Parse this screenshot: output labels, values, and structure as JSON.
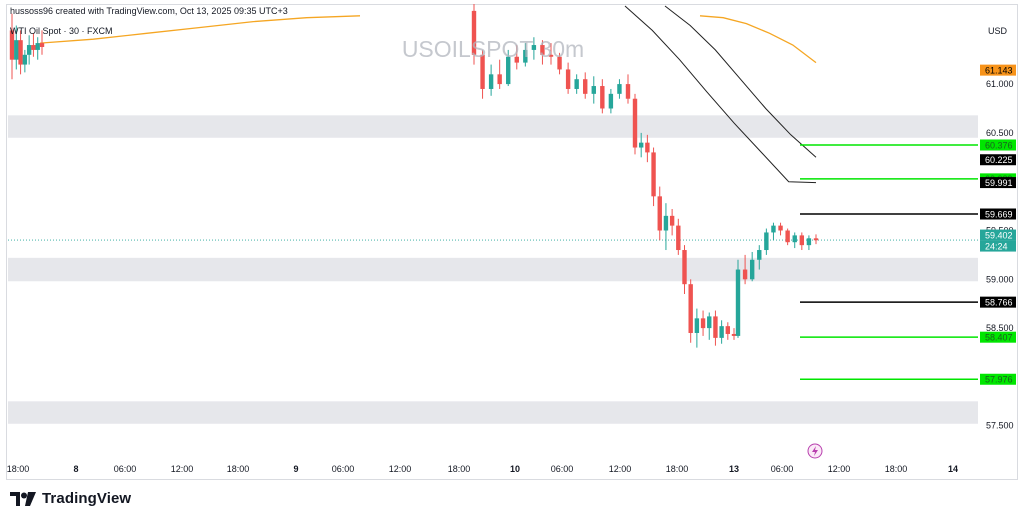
{
  "attribution": "hussoss96 created with TradingView.com, Oct 13, 2025 09:35 UTC+3",
  "instrument_label": "WTI Oil Spot · 30 · FXCM",
  "watermark": "USOILSPOT 30m",
  "currency": "USD",
  "brand": "TradingView",
  "icons": {
    "brand_logo": "tradingview-logo-icon",
    "replay": "lightning-icon"
  },
  "colors": {
    "up": "#26a69a",
    "down": "#ef5350",
    "zone": "#e6e7eb",
    "level_black": "#000000",
    "level_green": "#00e600",
    "ma_orange": "#f5a623",
    "channel": "#222222",
    "price_line": "#26a69a"
  },
  "chart_data": {
    "type": "candlestick",
    "title": "USOILSPOT 30m",
    "ylim": [
      57.2,
      61.8
    ],
    "yticks": [
      61.0,
      60.5,
      59.5,
      59.0,
      58.5,
      57.5
    ],
    "ytick_labels": [
      "61.000",
      "60.500",
      "59.500",
      "59.000",
      "58.500",
      "57.500"
    ],
    "xtick_labels": [
      "18:00",
      "8",
      "06:00",
      "12:00",
      "18:00",
      "9",
      "06:00",
      "12:00",
      "18:00",
      "10",
      "06:00",
      "12:00",
      "18:00",
      "13",
      "06:00",
      "12:00",
      "18:00",
      "14"
    ],
    "candles": [
      {
        "o": 61.55,
        "h": 61.72,
        "l": 61.05,
        "c": 61.25
      },
      {
        "o": 61.25,
        "h": 61.6,
        "l": 61.15,
        "c": 61.45
      },
      {
        "o": 61.45,
        "h": 61.55,
        "l": 61.1,
        "c": 61.2
      },
      {
        "o": 61.2,
        "h": 61.35,
        "l": 61.12,
        "c": 61.3
      },
      {
        "o": 61.3,
        "h": 61.5,
        "l": 61.2,
        "c": 61.4
      },
      {
        "o": 61.4,
        "h": 61.52,
        "l": 61.28,
        "c": 61.35
      },
      {
        "o": 61.35,
        "h": 61.48,
        "l": 61.25,
        "c": 61.42
      },
      {
        "o": 61.42,
        "h": 61.55,
        "l": 61.3,
        "c": 61.38
      },
      {
        "o": 61.75,
        "h": 61.82,
        "l": 61.2,
        "c": 61.3
      },
      {
        "o": 61.3,
        "h": 61.35,
        "l": 60.85,
        "c": 60.95
      },
      {
        "o": 60.95,
        "h": 61.2,
        "l": 60.88,
        "c": 61.1
      },
      {
        "o": 61.1,
        "h": 61.25,
        "l": 60.95,
        "c": 61.0
      },
      {
        "o": 61.0,
        "h": 61.35,
        "l": 60.98,
        "c": 61.28
      },
      {
        "o": 61.28,
        "h": 61.4,
        "l": 61.15,
        "c": 61.22
      },
      {
        "o": 61.22,
        "h": 61.42,
        "l": 61.18,
        "c": 61.35
      },
      {
        "o": 61.35,
        "h": 61.48,
        "l": 61.25,
        "c": 61.4
      },
      {
        "o": 61.4,
        "h": 61.45,
        "l": 61.2,
        "c": 61.3
      },
      {
        "o": 61.3,
        "h": 61.42,
        "l": 61.2,
        "c": 61.28
      },
      {
        "o": 61.28,
        "h": 61.32,
        "l": 61.1,
        "c": 61.15
      },
      {
        "o": 61.15,
        "h": 61.22,
        "l": 60.9,
        "c": 60.95
      },
      {
        "o": 60.95,
        "h": 61.1,
        "l": 60.9,
        "c": 61.05
      },
      {
        "o": 61.05,
        "h": 61.12,
        "l": 60.85,
        "c": 60.9
      },
      {
        "o": 60.9,
        "h": 61.08,
        "l": 60.8,
        "c": 60.98
      },
      {
        "o": 60.98,
        "h": 61.05,
        "l": 60.7,
        "c": 60.75
      },
      {
        "o": 60.75,
        "h": 60.95,
        "l": 60.7,
        "c": 60.9
      },
      {
        "o": 60.9,
        "h": 61.05,
        "l": 60.85,
        "c": 61.0
      },
      {
        "o": 61.0,
        "h": 61.1,
        "l": 60.8,
        "c": 60.85
      },
      {
        "o": 60.85,
        "h": 60.9,
        "l": 60.28,
        "c": 60.35
      },
      {
        "o": 60.35,
        "h": 60.5,
        "l": 60.25,
        "c": 60.4
      },
      {
        "o": 60.4,
        "h": 60.48,
        "l": 60.2,
        "c": 60.3
      },
      {
        "o": 60.3,
        "h": 60.35,
        "l": 59.75,
        "c": 59.85
      },
      {
        "o": 59.85,
        "h": 59.95,
        "l": 59.4,
        "c": 59.5
      },
      {
        "o": 59.5,
        "h": 59.78,
        "l": 59.3,
        "c": 59.65
      },
      {
        "o": 59.65,
        "h": 59.72,
        "l": 59.45,
        "c": 59.55
      },
      {
        "o": 59.55,
        "h": 59.62,
        "l": 59.25,
        "c": 59.3
      },
      {
        "o": 59.3,
        "h": 59.35,
        "l": 58.85,
        "c": 58.95
      },
      {
        "o": 58.95,
        "h": 59.0,
        "l": 58.35,
        "c": 58.45
      },
      {
        "o": 58.45,
        "h": 58.7,
        "l": 58.3,
        "c": 58.6
      },
      {
        "o": 58.6,
        "h": 58.68,
        "l": 58.42,
        "c": 58.5
      },
      {
        "o": 58.5,
        "h": 58.66,
        "l": 58.38,
        "c": 58.62
      },
      {
        "o": 58.62,
        "h": 58.68,
        "l": 58.32,
        "c": 58.4
      },
      {
        "o": 58.4,
        "h": 58.58,
        "l": 58.34,
        "c": 58.52
      },
      {
        "o": 58.52,
        "h": 58.56,
        "l": 58.38,
        "c": 58.44
      },
      {
        "o": 58.44,
        "h": 58.5,
        "l": 58.38,
        "c": 58.42
      },
      {
        "o": 58.42,
        "h": 59.2,
        "l": 58.4,
        "c": 59.1
      },
      {
        "o": 59.1,
        "h": 59.25,
        "l": 58.95,
        "c": 59.0
      },
      {
        "o": 59.0,
        "h": 59.28,
        "l": 58.98,
        "c": 59.2
      },
      {
        "o": 59.2,
        "h": 59.35,
        "l": 59.1,
        "c": 59.3
      },
      {
        "o": 59.3,
        "h": 59.52,
        "l": 59.25,
        "c": 59.48
      },
      {
        "o": 59.48,
        "h": 59.58,
        "l": 59.4,
        "c": 59.55
      },
      {
        "o": 59.55,
        "h": 59.58,
        "l": 59.45,
        "c": 59.5
      },
      {
        "o": 59.5,
        "h": 59.52,
        "l": 59.35,
        "c": 59.38
      },
      {
        "o": 59.38,
        "h": 59.48,
        "l": 59.32,
        "c": 59.45
      },
      {
        "o": 59.45,
        "h": 59.48,
        "l": 59.3,
        "c": 59.35
      },
      {
        "o": 59.35,
        "h": 59.45,
        "l": 59.3,
        "c": 59.42
      },
      {
        "o": 59.42,
        "h": 59.46,
        "l": 59.36,
        "c": 59.4
      }
    ],
    "zones": [
      [
        60.45,
        60.68
      ],
      [
        58.98,
        59.22
      ],
      [
        57.52,
        57.75
      ]
    ],
    "levels_black": [
      59.669,
      58.766
    ],
    "levels_green": [
      60.376,
      60.029,
      58.407,
      57.976
    ],
    "moving_average_orange": [
      61.42,
      61.46,
      61.52,
      61.58,
      61.64,
      61.68,
      61.7,
      61.7,
      61.68,
      61.62,
      61.52,
      61.4,
      61.22
    ],
    "channel_upper": [
      61.8,
      61.6,
      61.35,
      61.05,
      60.75,
      60.48,
      60.25
    ],
    "channel_lower": [
      61.8,
      61.55,
      61.25,
      60.92,
      60.6,
      60.3,
      60.0,
      59.991
    ],
    "last_price": 59.402,
    "price_labels": [
      {
        "text": "61.143",
        "value": 61.143,
        "style": "orange"
      },
      {
        "text": "60.376",
        "value": 60.376,
        "style": "green"
      },
      {
        "text": "60.225",
        "value": 60.225,
        "style": "black"
      },
      {
        "text": "60.029",
        "value": 60.029,
        "style": "green"
      },
      {
        "text": "59.991",
        "value": 59.991,
        "style": "black"
      },
      {
        "text": "59.669",
        "value": 59.669,
        "style": "black"
      },
      {
        "text": "59.402",
        "value": 59.402,
        "style": "teal"
      },
      {
        "text": "24:24",
        "value": 59.402,
        "style": "teal-timer"
      },
      {
        "text": "58.766",
        "value": 58.766,
        "style": "black"
      },
      {
        "text": "58.407",
        "value": 58.407,
        "style": "green"
      },
      {
        "text": "57.976",
        "value": 57.976,
        "style": "green"
      }
    ]
  }
}
